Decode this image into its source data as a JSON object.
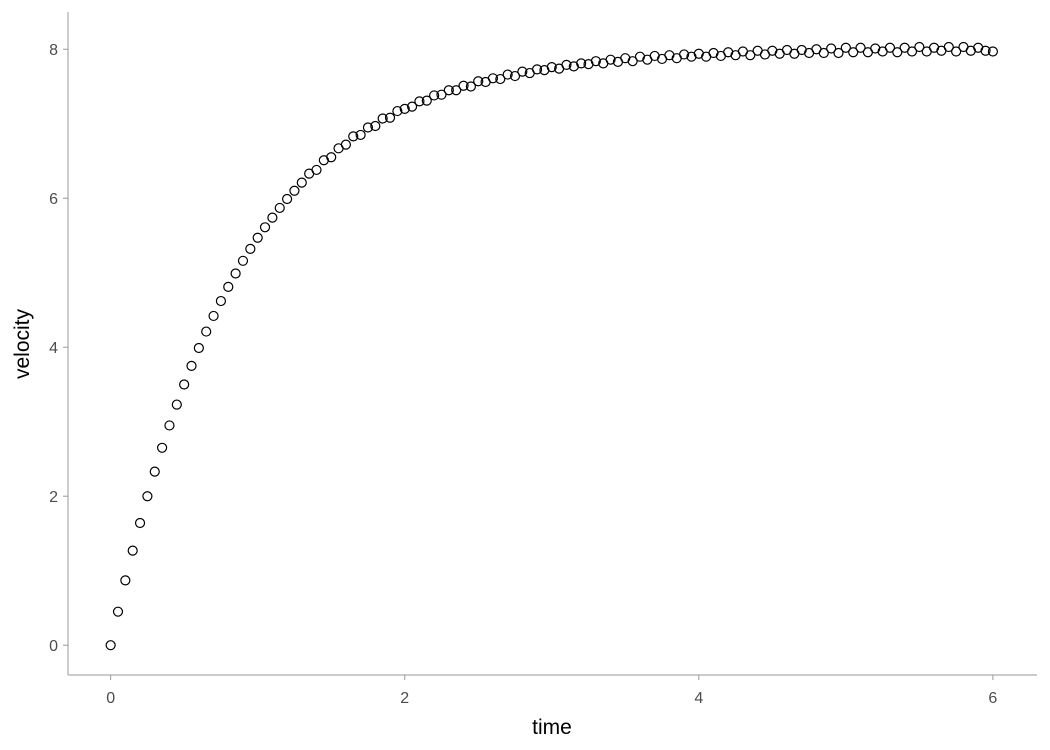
{
  "chart_data": {
    "type": "scatter",
    "title": "",
    "xlabel": "time",
    "ylabel": "velocity",
    "xlim": [
      -0.29,
      6.3
    ],
    "ylim": [
      -0.4,
      8.5
    ],
    "xticks": [
      "0",
      "2",
      "4",
      "6"
    ],
    "yticks": [
      "0",
      "2",
      "4",
      "6",
      "8"
    ],
    "grid": false,
    "marker": "open-circle",
    "marker_color": "#000000",
    "axis_color": "#999999",
    "x": [
      0,
      0.05,
      0.1,
      0.15,
      0.2,
      0.25,
      0.3,
      0.35,
      0.4,
      0.45,
      0.5,
      0.55,
      0.6,
      0.65,
      0.7,
      0.75,
      0.8,
      0.85,
      0.9,
      0.95,
      1,
      1.05,
      1.1,
      1.15,
      1.2,
      1.25,
      1.3,
      1.35,
      1.4,
      1.45,
      1.5,
      1.55,
      1.6,
      1.65,
      1.7,
      1.75,
      1.8,
      1.85,
      1.9,
      1.95,
      2,
      2.05,
      2.1,
      2.15,
      2.2,
      2.25,
      2.3,
      2.35,
      2.4,
      2.45,
      2.5,
      2.55,
      2.6,
      2.65,
      2.7,
      2.75,
      2.8,
      2.85,
      2.9,
      2.95,
      3,
      3.05,
      3.1,
      3.15,
      3.2,
      3.25,
      3.3,
      3.35,
      3.4,
      3.45,
      3.5,
      3.55,
      3.6,
      3.65,
      3.7,
      3.75,
      3.8,
      3.85,
      3.9,
      3.95,
      4,
      4.05,
      4.1,
      4.15,
      4.2,
      4.25,
      4.3,
      4.35,
      4.4,
      4.45,
      4.5,
      4.55,
      4.6,
      4.65,
      4.7,
      4.75,
      4.8,
      4.85,
      4.9,
      4.95,
      5,
      5.05,
      5.1,
      5.15,
      5.2,
      5.25,
      5.3,
      5.35,
      5.4,
      5.45,
      5.5,
      5.55,
      5.6,
      5.65,
      5.7,
      5.75,
      5.8,
      5.85,
      5.9,
      5.95,
      6
    ],
    "y": [
      0,
      0.45,
      0.87,
      1.27,
      1.64,
      2.0,
      2.33,
      2.65,
      2.95,
      3.23,
      3.5,
      3.75,
      3.99,
      4.21,
      4.42,
      4.62,
      4.81,
      4.99,
      5.16,
      5.32,
      5.47,
      5.61,
      5.74,
      5.87,
      5.99,
      6.1,
      6.21,
      6.33,
      6.38,
      6.51,
      6.55,
      6.67,
      6.72,
      6.83,
      6.85,
      6.95,
      6.97,
      7.07,
      7.08,
      7.17,
      7.2,
      7.23,
      7.3,
      7.31,
      7.38,
      7.39,
      7.45,
      7.45,
      7.51,
      7.5,
      7.57,
      7.56,
      7.61,
      7.6,
      7.66,
      7.64,
      7.7,
      7.68,
      7.73,
      7.72,
      7.76,
      7.74,
      7.79,
      7.77,
      7.81,
      7.8,
      7.84,
      7.81,
      7.86,
      7.83,
      7.88,
      7.84,
      7.9,
      7.86,
      7.91,
      7.87,
      7.92,
      7.88,
      7.93,
      7.9,
      7.94,
      7.9,
      7.95,
      7.91,
      7.96,
      7.92,
      7.97,
      7.92,
      7.98,
      7.93,
      7.98,
      7.94,
      7.99,
      7.94,
      7.99,
      7.95,
      8.0,
      7.95,
      8.01,
      7.95,
      8.02,
      7.96,
      8.02,
      7.96,
      8.01,
      7.97,
      8.02,
      7.96,
      8.02,
      7.97,
      8.03,
      7.97,
      8.02,
      7.98,
      8.03,
      7.97,
      8.03,
      7.98,
      8.02,
      7.98,
      7.97
    ]
  }
}
